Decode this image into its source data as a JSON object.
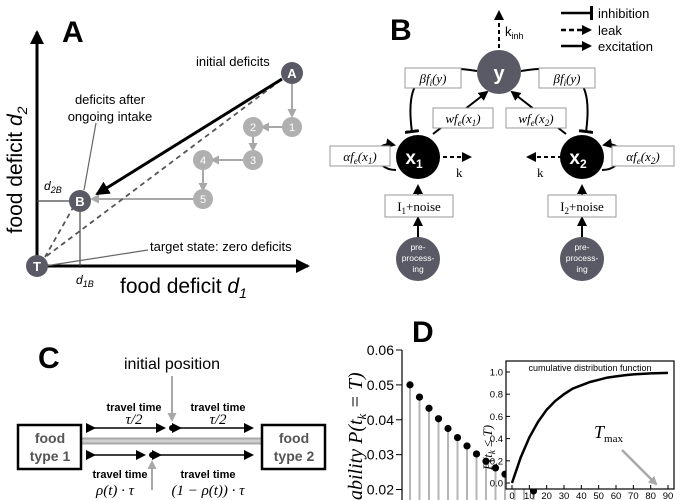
{
  "panelA": {
    "label": "A",
    "ylabel_base": "food deficit ",
    "ylabel_var": "d",
    "ylabel_sub": "2",
    "xlabel_base": "food deficit ",
    "xlabel_var": "d",
    "xlabel_sub": "1",
    "node_A": "A",
    "node_B": "B",
    "node_T": "T",
    "steps": [
      "1",
      "2",
      "3",
      "4",
      "5"
    ],
    "ann_initial": "initial deficits",
    "ann_after_1": "deficits after",
    "ann_after_2": "ongoing intake",
    "ann_target": "target state: zero deficits",
    "d2B_var": "d",
    "d2B_sub": "2B",
    "d1B_var": "d",
    "d1B_sub": "1B"
  },
  "panelB": {
    "label": "B",
    "legend": [
      "inhibition",
      "leak",
      "excitation"
    ],
    "node_y": "y",
    "node_x1": "x",
    "node_x1_sub": "1",
    "node_x2": "x",
    "node_x2_sub": "2",
    "kinh": "k",
    "kinh_sub": "inh",
    "k_left": "k",
    "k_right": "k",
    "beta_left": "βf",
    "beta_left_sub": "i",
    "beta_left_arg": "(y)",
    "beta_right": "βf",
    "beta_right_sub": "i",
    "beta_right_arg": "(y)",
    "w_left": "wf",
    "w_left_sub": "e",
    "w_left_arg": "(x",
    "w_left_arg_sub": "1",
    "w_right": "wf",
    "w_right_sub": "e",
    "w_right_arg": "(x",
    "w_right_arg_sub": "2",
    "alpha_left": "αf",
    "alpha_left_sub": "e",
    "alpha_left_arg": "(x",
    "alpha_left_arg_sub": "1",
    "alpha_right": "αf",
    "alpha_right_sub": "e",
    "alpha_right_arg": "(x",
    "alpha_right_arg_sub": "2",
    "input_left": "I",
    "input_left_sub": "1",
    "input_left_rest": "+noise",
    "input_right": "I",
    "input_right_sub": "2",
    "input_right_rest": "+noise",
    "pre_lines": [
      "pre-",
      "process-",
      "ing"
    ]
  },
  "panelC": {
    "label": "C",
    "initial_position": "initial position",
    "food1": [
      "food",
      "type 1"
    ],
    "food2": [
      "food",
      "type 2"
    ],
    "travel_time": "travel time",
    "tau_half": "τ/2",
    "rho_left": "ρ(t) · τ",
    "rho_right": "(1 − ρ(t)) · τ"
  },
  "panelD": {
    "label": "D",
    "ylabel_prefix": "ability ",
    "ylabel_math": "P(t",
    "ylabel_sub": "k",
    "ylabel_rest": " = T)",
    "yticks": [
      "0.06",
      "0.05",
      "0.04",
      "0.03",
      "0.02"
    ],
    "inset_title": "cumulative distribution function",
    "inset_yticks": [
      "1.0",
      "0.8",
      "0.6",
      "0.4",
      "0.2",
      "0.0"
    ],
    "inset_xticks": [
      "0",
      "10",
      "20",
      "30",
      "40",
      "50",
      "60",
      "70",
      "80",
      "90"
    ],
    "inset_ylabel": "P(t",
    "inset_ylabel_sub": "k",
    "inset_ylabel_rest": " ≤ T)",
    "tmax": "T",
    "tmax_sub": "max"
  },
  "chart_data": {
    "type": "line",
    "title": "cumulative distribution function",
    "xlabel": "",
    "ylabel": "P(t_k ≤ T)",
    "xlim": [
      0,
      90
    ],
    "ylim": [
      0,
      1.0
    ],
    "x": [
      0,
      5,
      10,
      15,
      20,
      25,
      30,
      35,
      40,
      45,
      50,
      55,
      60,
      65,
      70,
      75,
      80,
      85,
      90
    ],
    "series": [
      {
        "values": [
          0,
          0.23,
          0.41,
          0.55,
          0.66,
          0.74,
          0.8,
          0.85,
          0.88,
          0.91,
          0.93,
          0.95,
          0.96,
          0.97,
          0.978,
          0.983,
          0.987,
          0.99,
          0.992
        ]
      }
    ],
    "main_pmf": {
      "type": "scatter",
      "ylabel": "P(t_k = T)",
      "yticks": [
        0.02,
        0.03,
        0.04,
        0.05,
        0.06
      ],
      "values": [
        0.05,
        0.0465,
        0.0433,
        0.0403,
        0.0375,
        0.0349,
        0.0325,
        0.0302,
        0.0281,
        0.0262,
        0.0244,
        0.0227,
        0.0211,
        0.0196
      ]
    }
  }
}
